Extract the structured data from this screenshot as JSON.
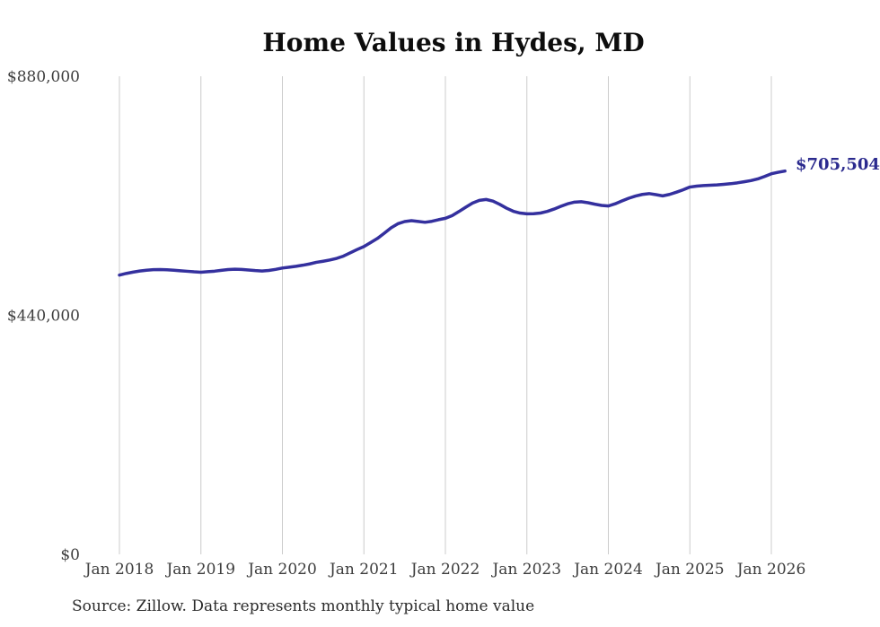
{
  "chart_data": {
    "type": "line",
    "title": "Home Values in Hydes, MD",
    "series_name": "Typical home value (monthly)",
    "source_note": "Source: Zillow. Data represents monthly typical home value",
    "end_label": "$705,504",
    "end_value": 705504,
    "line_color": "#34309e",
    "grid": "vertical-only",
    "legend": "none",
    "ylim": [
      0,
      880000
    ],
    "y_ticks": [
      880000,
      440000,
      0
    ],
    "y_tick_labels": [
      "$880,000",
      "$440,000",
      "$0"
    ],
    "x_tick_labels": [
      "Jan 2018",
      "Jan 2019",
      "Jan 2020",
      "Jan 2021",
      "Jan 2022",
      "Jan 2023",
      "Jan 2024",
      "Jan 2025",
      "Jan 2026"
    ],
    "x": [
      "2018-01",
      "2018-02",
      "2018-03",
      "2018-04",
      "2018-05",
      "2018-06",
      "2018-07",
      "2018-08",
      "2018-09",
      "2018-10",
      "2018-11",
      "2018-12",
      "2019-01",
      "2019-02",
      "2019-03",
      "2019-04",
      "2019-05",
      "2019-06",
      "2019-07",
      "2019-08",
      "2019-09",
      "2019-10",
      "2019-11",
      "2019-12",
      "2020-01",
      "2020-02",
      "2020-03",
      "2020-04",
      "2020-05",
      "2020-06",
      "2020-07",
      "2020-08",
      "2020-09",
      "2020-10",
      "2020-11",
      "2020-12",
      "2021-01",
      "2021-02",
      "2021-03",
      "2021-04",
      "2021-05",
      "2021-06",
      "2021-07",
      "2021-08",
      "2021-09",
      "2021-10",
      "2021-11",
      "2021-12",
      "2022-01",
      "2022-02",
      "2022-03",
      "2022-04",
      "2022-05",
      "2022-06",
      "2022-07",
      "2022-08",
      "2022-09",
      "2022-10",
      "2022-11",
      "2022-12",
      "2023-01",
      "2023-02",
      "2023-03",
      "2023-04",
      "2023-05",
      "2023-06",
      "2023-07",
      "2023-08",
      "2023-09",
      "2023-10",
      "2023-11",
      "2023-12",
      "2024-01",
      "2024-02",
      "2024-03",
      "2024-04",
      "2024-05",
      "2024-06",
      "2024-07",
      "2024-08",
      "2024-09",
      "2024-10",
      "2024-11",
      "2024-12",
      "2025-01",
      "2025-02",
      "2025-03",
      "2025-04",
      "2025-05",
      "2025-06",
      "2025-07",
      "2025-08",
      "2025-09",
      "2025-10",
      "2025-11",
      "2025-12",
      "2026-01",
      "2026-02",
      "2026-03"
    ],
    "values": [
      514000,
      517000,
      519500,
      521500,
      523000,
      524000,
      524200,
      523800,
      523000,
      522000,
      521000,
      520000,
      519300,
      520200,
      521200,
      522800,
      524200,
      524800,
      524400,
      523400,
      522300,
      521500,
      522500,
      524500,
      527000,
      528500,
      530200,
      532200,
      534500,
      537500,
      539500,
      541800,
      544800,
      549000,
      555000,
      561000,
      566500,
      574000,
      581500,
      591000,
      601000,
      608500,
      612500,
      614200,
      612800,
      611200,
      613000,
      616000,
      618500,
      623500,
      631000,
      639000,
      646500,
      651500,
      653200,
      650200,
      644200,
      637200,
      631500,
      628200,
      626800,
      626900,
      628200,
      631200,
      635500,
      640500,
      645200,
      648300,
      649000,
      647200,
      644500,
      642200,
      641200,
      645200,
      650500,
      655500,
      659500,
      662500,
      664000,
      662000,
      659800,
      662500,
      666500,
      671000,
      676000,
      677800,
      678800,
      679300,
      680000,
      681000,
      682200,
      683800,
      685800,
      688000,
      691000,
      695500,
      700500,
      703200,
      705504
    ]
  }
}
